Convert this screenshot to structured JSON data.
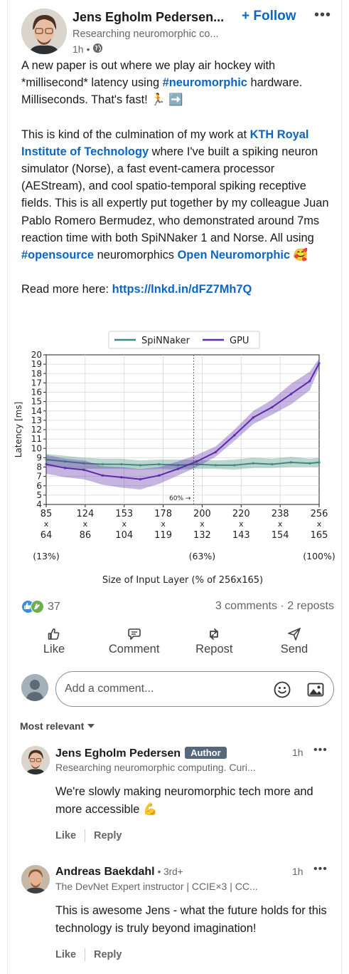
{
  "post": {
    "author_name": "Jens Egholm Pedersen",
    "author_name_display": "Jens Egholm Pedersen...",
    "author_headline": "Researching neuromorphic co...",
    "time": "1h",
    "separator": "•",
    "follow_label": "+ Follow",
    "more_label": "•••",
    "text": {
      "p1_a": "A new paper is out where we play air hockey with *millisecond* latency using ",
      "p1_tag": "#neuromorphic",
      "p1_b": " hardware. Milliseconds. That's fast! 🏃 ➡️",
      "p2_a": "This is kind of the culmination of my work at ",
      "p2_link": "KTH Royal Institute of Technology",
      "p2_b": " where I've built a spiking neuron simulator (Norse), a fast event-camera processor (AEStream), and cool spatio-temporal spiking receptive fields. This is all expertly put together by my colleague Juan Pablo Romero Bermudez, who demonstrated around 7ms reaction time with both SpiNNaker 1 and Norse. All using ",
      "p2_tag": "#opensource",
      "p2_c": " neuromorphics ",
      "p2_link2": "Open Neuromorphic",
      "p2_emoji": " 🥰",
      "p3_a": "Read more here: ",
      "p3_link": "https://lnkd.in/dFZ7Mh7Q"
    }
  },
  "chart_data": {
    "type": "line",
    "ylabel": "Latency [ms]",
    "xlabel": "Size of Input Layer (% of 256x165)",
    "ylim": [
      4,
      20
    ],
    "yticks": [
      4,
      5,
      6,
      7,
      8,
      9,
      10,
      11,
      12,
      13,
      14,
      15,
      16,
      17,
      18,
      19,
      20
    ],
    "x_ticks": [
      {
        "w": "85",
        "h": "64",
        "pct": "(13%)"
      },
      {
        "w": "124",
        "h": "86",
        "pct": ""
      },
      {
        "w": "153",
        "h": "104",
        "pct": ""
      },
      {
        "w": "178",
        "h": "119",
        "pct": ""
      },
      {
        "w": "200",
        "h": "132",
        "pct": "(63%)"
      },
      {
        "w": "220",
        "h": "143",
        "pct": ""
      },
      {
        "w": "238",
        "h": "154",
        "pct": ""
      },
      {
        "w": "256",
        "h": "165",
        "pct": "(100%)"
      }
    ],
    "x_tick_cross": "x",
    "annotation": "60% →",
    "annotation_at_percent": 60,
    "x_percent_range": [
      13,
      100
    ],
    "grid": true,
    "legend_position": "top-center",
    "series": [
      {
        "name": "SpiNNaker",
        "color": "#3e8a7e",
        "x_percent": [
          13,
          19,
          25,
          31,
          37,
          43,
          49,
          55,
          61,
          67,
          73,
          79,
          85,
          91,
          97,
          100
        ],
        "mean": [
          8.8,
          8.6,
          8.4,
          8.3,
          8.3,
          8.2,
          8.3,
          8.2,
          8.3,
          8.2,
          8.2,
          8.4,
          8.3,
          8.5,
          8.4,
          8.5
        ],
        "lower": [
          8.1,
          8.0,
          7.8,
          7.8,
          7.8,
          7.7,
          7.8,
          7.7,
          7.8,
          7.8,
          7.7,
          7.9,
          7.9,
          8.0,
          8.0,
          8.0
        ],
        "upper": [
          9.4,
          9.2,
          9.0,
          8.9,
          8.9,
          8.7,
          8.8,
          8.8,
          8.8,
          8.7,
          8.8,
          9.0,
          8.9,
          9.1,
          8.9,
          9.0
        ]
      },
      {
        "name": "GPU",
        "color": "#5b2ba8",
        "x_percent": [
          13,
          19,
          25,
          31,
          37,
          43,
          49,
          55,
          61,
          67,
          73,
          79,
          85,
          91,
          97,
          100
        ],
        "mean": [
          8.3,
          7.9,
          7.7,
          7.1,
          6.9,
          6.7,
          7.1,
          7.8,
          8.6,
          9.6,
          11.4,
          13.3,
          14.4,
          15.8,
          17.2,
          19.1
        ],
        "lower": [
          7.3,
          6.9,
          6.7,
          6.1,
          5.8,
          5.6,
          6.2,
          7.1,
          8.0,
          9.1,
          10.8,
          12.6,
          13.6,
          14.7,
          16.2,
          18.6
        ],
        "upper": [
          9.3,
          8.9,
          8.7,
          8.1,
          8.0,
          7.8,
          8.0,
          8.6,
          9.3,
          10.2,
          12.0,
          14.0,
          15.2,
          16.9,
          18.2,
          19.6
        ]
      }
    ]
  },
  "social": {
    "reaction_count": "37",
    "comments_reposts": "3 comments · 2 reposts"
  },
  "actions": {
    "like": "Like",
    "comment": "Comment",
    "repost": "Repost",
    "send": "Send"
  },
  "comment_box": {
    "placeholder": "Add a comment..."
  },
  "sort_label": "Most relevant",
  "comments": [
    {
      "name": "Jens Egholm Pedersen",
      "badge": "Author",
      "headline": "Researching neuromorphic computing. Curi...",
      "time": "1h",
      "text": "We're slowly making neuromorphic tech more and more accessible 💪",
      "like": "Like",
      "reply": "Reply"
    },
    {
      "name": "Andreas Baekdahl",
      "degree": "• 3rd+",
      "headline": "The DevNet Expert instructor | CCIE×3 | CC...",
      "time": "1h",
      "text": "This is awesome Jens - what the future holds for this technology is truly beyond imagination!",
      "like": "Like",
      "reply": "Reply"
    }
  ],
  "colors": {
    "link": "#0a66c2",
    "badge": "#56687a"
  }
}
